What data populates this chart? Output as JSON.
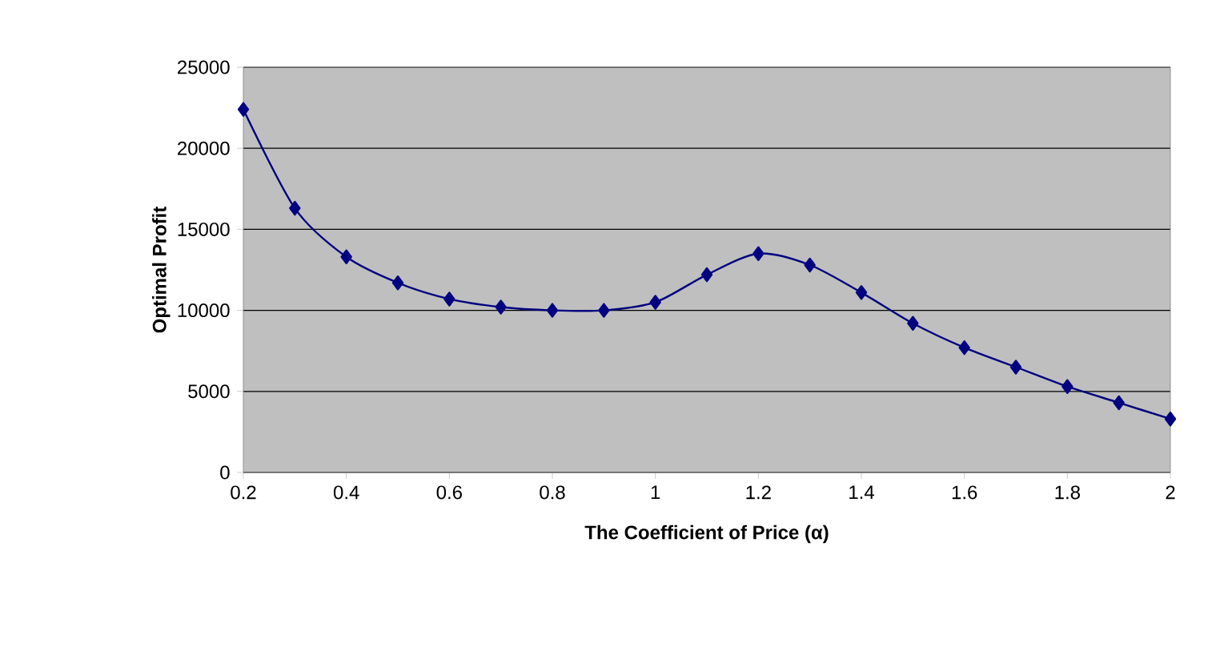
{
  "chart_data": {
    "type": "line",
    "xlabel": "The Coefficient of Price (α)",
    "ylabel": "Optimal Profit",
    "x": [
      0.2,
      0.3,
      0.4,
      0.5,
      0.6,
      0.7,
      0.8,
      0.9,
      1.0,
      1.1,
      1.2,
      1.3,
      1.4,
      1.5,
      1.6,
      1.7,
      1.8,
      1.9,
      2.0
    ],
    "series": [
      {
        "color": "#000080",
        "values": [
          22400,
          16300,
          13300,
          11700,
          10700,
          10200,
          10000,
          10000,
          10500,
          12200,
          13500,
          12800,
          11100,
          9200,
          7700,
          6500,
          5300,
          4300,
          3300
        ]
      }
    ],
    "xlim": [
      0.2,
      2
    ],
    "ylim": [
      0,
      25000
    ],
    "xticks": [
      0.2,
      0.4,
      0.6,
      0.8,
      1,
      1.2,
      1.4,
      1.6,
      1.8,
      2
    ],
    "yticks": [
      0,
      5000,
      10000,
      15000,
      20000,
      25000
    ],
    "grid": "y",
    "marker": "diamond"
  }
}
